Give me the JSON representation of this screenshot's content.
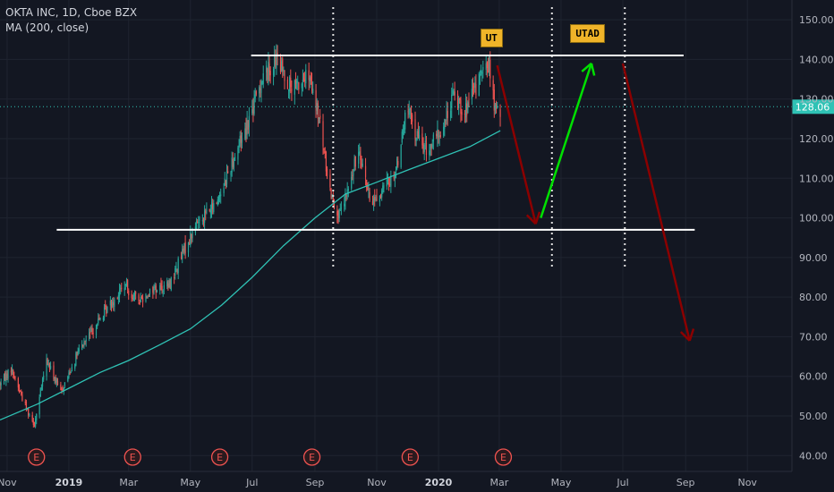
{
  "legend": {
    "symbol": "OKTA INC, 1D, Cboe BZX",
    "indicator": "MA (200, close)"
  },
  "price_label": "128.06",
  "annotations": {
    "ut": "UT",
    "utad": "UTAD",
    "earnings_marker": "E"
  },
  "colors": {
    "background": "#131722",
    "grid": "#1f2430",
    "bull": "#26a69a",
    "bear": "#ef5350",
    "ma": "#2fc2b5",
    "resistance_line": "#ffffff",
    "down_arrow": "#8b0000",
    "up_arrow": "#00e000",
    "label_bg": "#f0b429"
  },
  "chart_data": {
    "type": "candlestick",
    "y_axis": {
      "ticks": [
        "40.00",
        "50.00",
        "60.00",
        "70.00",
        "80.00",
        "90.00",
        "100.00",
        "110.00",
        "120.00",
        "130.00",
        "140.00",
        "150.00"
      ],
      "range": [
        36,
        155
      ]
    },
    "x_axis": {
      "labels": [
        "Nov",
        "2019",
        "Mar",
        "May",
        "Jul",
        "Sep",
        "Nov",
        "2020",
        "Mar",
        "May",
        "Jul",
        "Sep",
        "Nov"
      ],
      "label_dates": [
        "2018-11-01",
        "2019-01-01",
        "2019-03-01",
        "2019-05-01",
        "2019-07-01",
        "2019-09-01",
        "2019-11-01",
        "2020-01-01",
        "2020-03-01",
        "2020-05-01",
        "2020-07-01",
        "2020-09-01",
        "2020-11-01"
      ],
      "range": [
        "2018-10-25",
        "2020-12-15"
      ]
    },
    "price_path": [
      [
        "2018-10-25",
        58
      ],
      [
        "2018-11-05",
        62
      ],
      [
        "2018-11-20",
        52
      ],
      [
        "2018-11-28",
        48
      ],
      [
        "2018-12-10",
        64
      ],
      [
        "2018-12-24",
        56
      ],
      [
        "2019-01-10",
        66
      ],
      [
        "2019-01-25",
        72
      ],
      [
        "2019-02-10",
        78
      ],
      [
        "2019-02-25",
        83
      ],
      [
        "2019-03-10",
        79
      ],
      [
        "2019-03-25",
        82
      ],
      [
        "2019-04-10",
        83
      ],
      [
        "2019-04-25",
        92
      ],
      [
        "2019-05-10",
        100
      ],
      [
        "2019-05-25",
        103
      ],
      [
        "2019-06-05",
        110
      ],
      [
        "2019-06-20",
        120
      ],
      [
        "2019-07-01",
        127
      ],
      [
        "2019-07-10",
        135
      ],
      [
        "2019-07-25",
        140
      ],
      [
        "2019-08-10",
        132
      ],
      [
        "2019-08-25",
        136
      ],
      [
        "2019-09-05",
        125
      ],
      [
        "2019-09-15",
        108
      ],
      [
        "2019-09-25",
        100
      ],
      [
        "2019-10-05",
        108
      ],
      [
        "2019-10-15",
        118
      ],
      [
        "2019-10-25",
        104
      ],
      [
        "2019-11-05",
        106
      ],
      [
        "2019-11-20",
        112
      ],
      [
        "2019-12-01",
        128
      ],
      [
        "2019-12-10",
        121
      ],
      [
        "2019-12-20",
        117
      ],
      [
        "2020-01-05",
        122
      ],
      [
        "2020-01-15",
        131
      ],
      [
        "2020-01-28",
        127
      ],
      [
        "2020-02-10",
        135
      ],
      [
        "2020-02-20",
        139
      ],
      [
        "2020-02-25",
        128
      ],
      [
        "2020-03-02",
        126
      ]
    ],
    "moving_average": {
      "name": "MA (200, close)",
      "points": [
        [
          "2018-10-25",
          49
        ],
        [
          "2018-12-01",
          53
        ],
        [
          "2019-01-01",
          57
        ],
        [
          "2019-02-01",
          61
        ],
        [
          "2019-03-01",
          64
        ],
        [
          "2019-04-01",
          68
        ],
        [
          "2019-05-01",
          72
        ],
        [
          "2019-06-01",
          78
        ],
        [
          "2019-07-01",
          85
        ],
        [
          "2019-08-01",
          93
        ],
        [
          "2019-09-01",
          100
        ],
        [
          "2019-10-01",
          106
        ],
        [
          "2019-11-01",
          109
        ],
        [
          "2019-12-01",
          112
        ],
        [
          "2020-01-01",
          115
        ],
        [
          "2020-02-01",
          118
        ],
        [
          "2020-03-02",
          122
        ]
      ]
    },
    "last_price": 128.06,
    "horizontal_levels": [
      {
        "value": 141,
        "from": "2019-06-30",
        "to": "2020-08-30"
      },
      {
        "value": 97,
        "from": "2018-12-20",
        "to": "2020-09-10"
      }
    ],
    "vertical_markers": [
      "2019-09-19",
      "2020-04-22",
      "2020-07-03"
    ],
    "trend_arrows": [
      {
        "from": [
          "2020-02-28",
          138.5
        ],
        "to": [
          "2020-04-06",
          98.5
        ],
        "color": "down"
      },
      {
        "from": [
          "2020-04-11",
          100
        ],
        "to": [
          "2020-05-31",
          139
        ],
        "color": "up"
      },
      {
        "from": [
          "2020-07-01",
          139
        ],
        "to": [
          "2020-09-05",
          69
        ],
        "color": "down"
      }
    ],
    "labels": [
      {
        "text_key": "ut",
        "date": "2020-02-13",
        "value": 146
      },
      {
        "text_key": "utad",
        "date": "2020-05-12",
        "value": 147
      }
    ],
    "earnings_dates": [
      "2018-11-30",
      "2019-03-05",
      "2019-05-30",
      "2019-08-29",
      "2019-12-04",
      "2020-03-05"
    ]
  }
}
